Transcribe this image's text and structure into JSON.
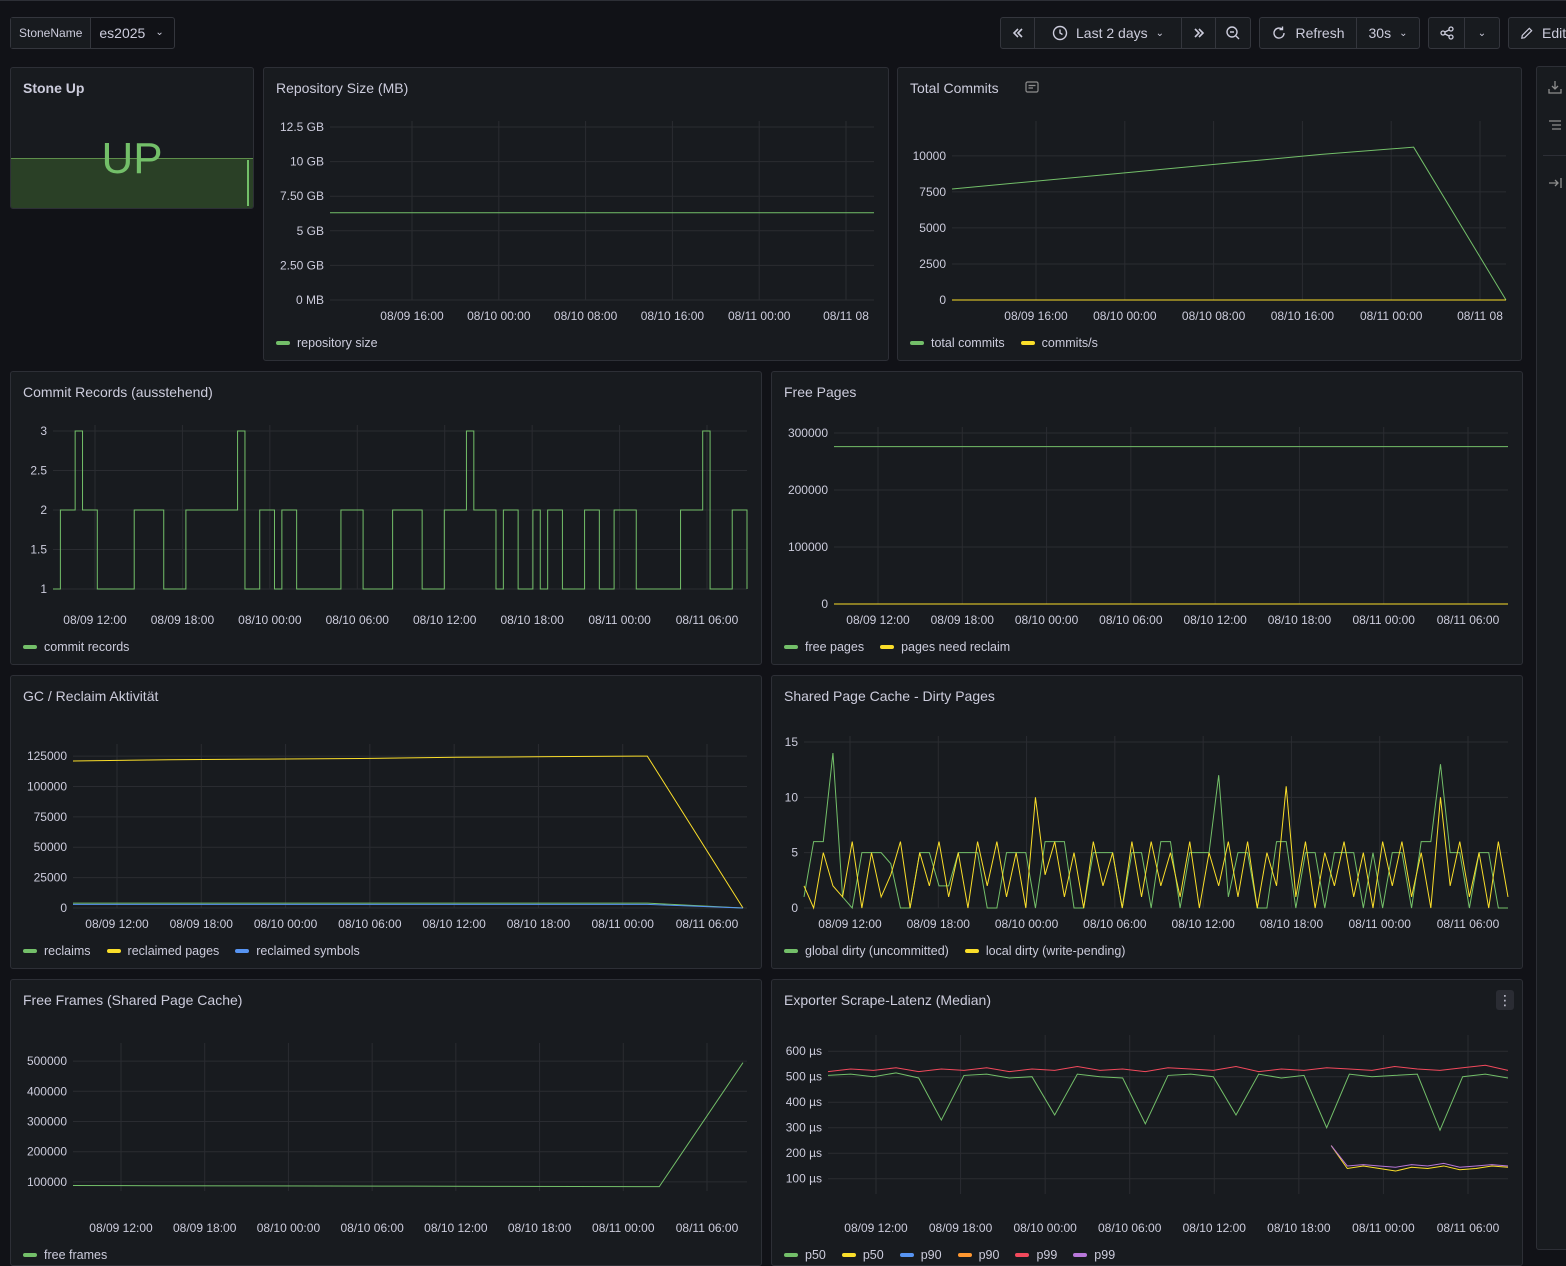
{
  "toolbar": {
    "variable_label": "StoneName",
    "variable_value": "es2025",
    "time_range": "Last 2 days",
    "refresh_label": "Refresh",
    "refresh_interval": "30s",
    "edit_label": "Edit"
  },
  "panels": {
    "stone_up": {
      "title": "Stone Up",
      "value": "UP",
      "color": "#73bf69"
    },
    "repo_size": {
      "title": "Repository Size (MB)"
    },
    "total_commits": {
      "title": "Total Commits"
    },
    "commit_records": {
      "title": "Commit Records (ausstehend)"
    },
    "free_pages": {
      "title": "Free Pages"
    },
    "gc_reclaim": {
      "title": "GC / Reclaim Aktivität"
    },
    "dirty_pages": {
      "title": "Shared Page Cache - Dirty Pages"
    },
    "free_frames": {
      "title": "Free Frames (Shared Page Cache)"
    },
    "scrape_latency": {
      "title": "Exporter Scrape-Latenz (Median)"
    }
  },
  "chart_data": [
    {
      "id": "repo_size",
      "type": "line",
      "title": "Repository Size (MB)",
      "x_ticks": [
        "08/09 16:00",
        "08/10 00:00",
        "08/10 08:00",
        "08/10 16:00",
        "08/11 00:00",
        "08/11 08"
      ],
      "y_ticks": [
        "0 MB",
        "2.50 GB",
        "5 GB",
        "7.50 GB",
        "10 GB",
        "12.5 GB"
      ],
      "ylim": [
        0,
        12.5
      ],
      "series": [
        {
          "name": "repository size",
          "color": "#73bf69",
          "values": [
            6.3,
            6.3,
            6.3,
            6.3,
            6.3,
            6.3
          ]
        }
      ]
    },
    {
      "id": "total_commits",
      "type": "line",
      "title": "Total Commits",
      "x_ticks": [
        "08/09 16:00",
        "08/10 00:00",
        "08/10 08:00",
        "08/10 16:00",
        "08/11 00:00",
        "08/11 08"
      ],
      "y_ticks": [
        "0",
        "2500",
        "5000",
        "7500",
        "10000"
      ],
      "ylim": [
        0,
        12000
      ],
      "series": [
        {
          "name": "total commits",
          "color": "#73bf69",
          "values": [
            7700,
            8300,
            8900,
            9500,
            10100,
            10600,
            0
          ]
        },
        {
          "name": "commits/s",
          "color": "#fade2a",
          "values": [
            0,
            0,
            0,
            0,
            0,
            0,
            0
          ]
        }
      ]
    },
    {
      "id": "commit_records",
      "type": "line",
      "title": "Commit Records (ausstehend)",
      "x_ticks": [
        "08/09 12:00",
        "08/09 18:00",
        "08/10 00:00",
        "08/10 06:00",
        "08/10 12:00",
        "08/10 18:00",
        "08/11 00:00",
        "08/11 06:00"
      ],
      "y_ticks": [
        "1",
        "1.5",
        "2",
        "2.5",
        "3"
      ],
      "ylim": [
        1,
        3
      ],
      "series": [
        {
          "name": "commit records",
          "color": "#73bf69",
          "values": [
            1,
            2,
            2,
            3,
            2,
            2,
            1,
            1,
            1,
            1,
            1,
            2,
            2,
            2,
            2,
            1,
            1,
            1,
            2,
            2,
            2,
            2,
            2,
            2,
            2,
            3,
            1,
            1,
            2,
            2,
            1,
            2,
            2,
            1,
            1,
            1,
            1,
            1,
            1,
            2,
            2,
            2,
            1,
            1,
            1,
            1,
            2,
            2,
            2,
            2,
            1,
            1,
            1,
            2,
            2,
            2,
            3,
            2,
            2,
            2,
            1,
            2,
            2,
            1,
            1,
            2,
            1,
            2,
            2,
            1,
            1,
            1,
            2,
            2,
            1,
            1,
            2,
            2,
            2,
            1,
            1,
            1,
            1,
            1,
            1,
            2,
            2,
            2,
            3,
            1,
            1,
            1,
            2,
            2,
            1
          ]
        }
      ]
    },
    {
      "id": "free_pages",
      "type": "line",
      "title": "Free Pages",
      "x_ticks": [
        "08/09 12:00",
        "08/09 18:00",
        "08/10 00:00",
        "08/10 06:00",
        "08/10 12:00",
        "08/10 18:00",
        "08/11 00:00",
        "08/11 06:00"
      ],
      "y_ticks": [
        "0",
        "100000",
        "200000",
        "300000"
      ],
      "ylim": [
        0,
        300000
      ],
      "series": [
        {
          "name": "free pages",
          "color": "#73bf69",
          "values": [
            276000,
            276000,
            276000,
            276000,
            276000,
            276000,
            276000,
            276000
          ]
        },
        {
          "name": "pages need reclaim",
          "color": "#fade2a",
          "values": [
            0,
            0,
            0,
            0,
            0,
            0,
            0,
            0
          ]
        }
      ]
    },
    {
      "id": "gc_reclaim",
      "type": "line",
      "title": "GC / Reclaim Aktivität",
      "x_ticks": [
        "08/09 12:00",
        "08/09 18:00",
        "08/10 00:00",
        "08/10 06:00",
        "08/10 12:00",
        "08/10 18:00",
        "08/11 00:00",
        "08/11 06:00"
      ],
      "y_ticks": [
        "0",
        "25000",
        "50000",
        "75000",
        "100000",
        "125000"
      ],
      "ylim": [
        0,
        130000
      ],
      "series": [
        {
          "name": "reclaims",
          "color": "#73bf69",
          "values": [
            4000,
            4000,
            4000,
            4000,
            4000,
            4000,
            4000,
            0
          ]
        },
        {
          "name": "reclaimed pages",
          "color": "#fade2a",
          "values": [
            121000,
            122000,
            122500,
            123000,
            124000,
            124500,
            125000,
            0
          ]
        },
        {
          "name": "reclaimed symbols",
          "color": "#5794f2",
          "values": [
            3000,
            3000,
            3000,
            3000,
            3000,
            3000,
            3000,
            0
          ]
        }
      ]
    },
    {
      "id": "dirty_pages",
      "type": "line",
      "title": "Shared Page Cache - Dirty Pages",
      "x_ticks": [
        "08/09 12:00",
        "08/09 18:00",
        "08/10 00:00",
        "08/10 06:00",
        "08/10 12:00",
        "08/10 18:00",
        "08/11 00:00",
        "08/11 06:00"
      ],
      "y_ticks": [
        "0",
        "5",
        "10",
        "15"
      ],
      "ylim": [
        0,
        15
      ],
      "series": [
        {
          "name": "global dirty (uncommitted)",
          "color": "#73bf69",
          "values": [
            1,
            6,
            6,
            14,
            1,
            0,
            5,
            5,
            5,
            4,
            0,
            0,
            5,
            5,
            2,
            2,
            5,
            5,
            5,
            0,
            0,
            5,
            5,
            5,
            0,
            6,
            6,
            6,
            0,
            0,
            5,
            5,
            5,
            0,
            5,
            5,
            0,
            6,
            6,
            0,
            5,
            5,
            5,
            12,
            1,
            5,
            5,
            0,
            0,
            6,
            6,
            0,
            5,
            5,
            0,
            5,
            5,
            5,
            0,
            5,
            0,
            5,
            5,
            0,
            6,
            6,
            13,
            5,
            5,
            0,
            5,
            5,
            0,
            0
          ]
        },
        {
          "name": "local dirty (write-pending)",
          "color": "#fade2a",
          "values": [
            2,
            0,
            5,
            2,
            1,
            6,
            0,
            5,
            1,
            3,
            6,
            0,
            5,
            2,
            6,
            1,
            5,
            0,
            6,
            2,
            6,
            1,
            5,
            0,
            10,
            3,
            6,
            1,
            5,
            0,
            6,
            2,
            5,
            0,
            6,
            1,
            6,
            2,
            5,
            1,
            6,
            0,
            5,
            2,
            6,
            1,
            6,
            0,
            5,
            2,
            11,
            1,
            6,
            0,
            5,
            2,
            6,
            1,
            5,
            0,
            6,
            2,
            6,
            1,
            5,
            0,
            10,
            2,
            6,
            1,
            5,
            0,
            6,
            1
          ]
        }
      ]
    },
    {
      "id": "free_frames",
      "type": "line",
      "title": "Free Frames (Shared Page Cache)",
      "x_ticks": [
        "08/09 12:00",
        "08/09 18:00",
        "08/10 00:00",
        "08/10 06:00",
        "08/10 12:00",
        "08/10 18:00",
        "08/11 00:00",
        "08/11 06:00"
      ],
      "y_ticks": [
        "100000",
        "200000",
        "300000",
        "400000",
        "500000"
      ],
      "ylim": [
        70000,
        540000
      ],
      "series": [
        {
          "name": "free frames",
          "color": "#73bf69",
          "values": [
            88000,
            87500,
            87000,
            86500,
            86000,
            85500,
            85000,
            84500,
            495000
          ]
        }
      ]
    },
    {
      "id": "scrape_latency",
      "type": "line",
      "title": "Exporter Scrape-Latenz (Median)",
      "x_ticks": [
        "08/09 12:00",
        "08/09 18:00",
        "08/10 00:00",
        "08/10 06:00",
        "08/10 12:00",
        "08/10 18:00",
        "08/11 00:00",
        "08/11 06:00"
      ],
      "y_ticks": [
        "100 µs",
        "200 µs",
        "300 µs",
        "400 µs",
        "500 µs",
        "600 µs"
      ],
      "ylim": [
        40,
        640
      ],
      "series": [
        {
          "name": "p50",
          "color": "#73bf69",
          "values": [
            505,
            510,
            500,
            515,
            495,
            330,
            505,
            510,
            495,
            500,
            350,
            510,
            500,
            495,
            315,
            505,
            510,
            500,
            350,
            510,
            495,
            505,
            300,
            510,
            500,
            505,
            510,
            290,
            500,
            510,
            495
          ]
        },
        {
          "name": "p50",
          "color": "#fade2a",
          "values": [
            230,
            140,
            150,
            140,
            130,
            145,
            140,
            150,
            135,
            140,
            150,
            145
          ]
        },
        {
          "name": "p90",
          "color": "#5794f2",
          "values": []
        },
        {
          "name": "p90",
          "color": "#ff9830",
          "values": []
        },
        {
          "name": "p99",
          "color": "#f2495c",
          "values": [
            520,
            530,
            525,
            535,
            520,
            530,
            525,
            535,
            520,
            530,
            525,
            540,
            525,
            530,
            520,
            535,
            530,
            525,
            540,
            520,
            530,
            525,
            535,
            530,
            525,
            540,
            530,
            525,
            535,
            545,
            525
          ]
        },
        {
          "name": "p99",
          "color": "#b877d9",
          "values": [
            230,
            150,
            155,
            150,
            145,
            155,
            150,
            160,
            145,
            150,
            155,
            150
          ]
        }
      ]
    }
  ]
}
